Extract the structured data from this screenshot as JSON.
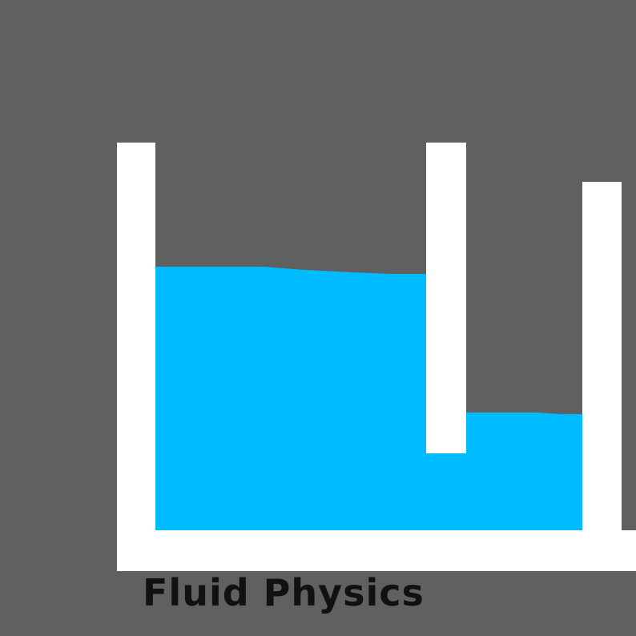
{
  "game": {
    "title": "Fluid Physics"
  },
  "colors": {
    "background": "#606060",
    "wall": "#ffffff",
    "fluid": "#00bbff",
    "title_text": "#111111"
  }
}
